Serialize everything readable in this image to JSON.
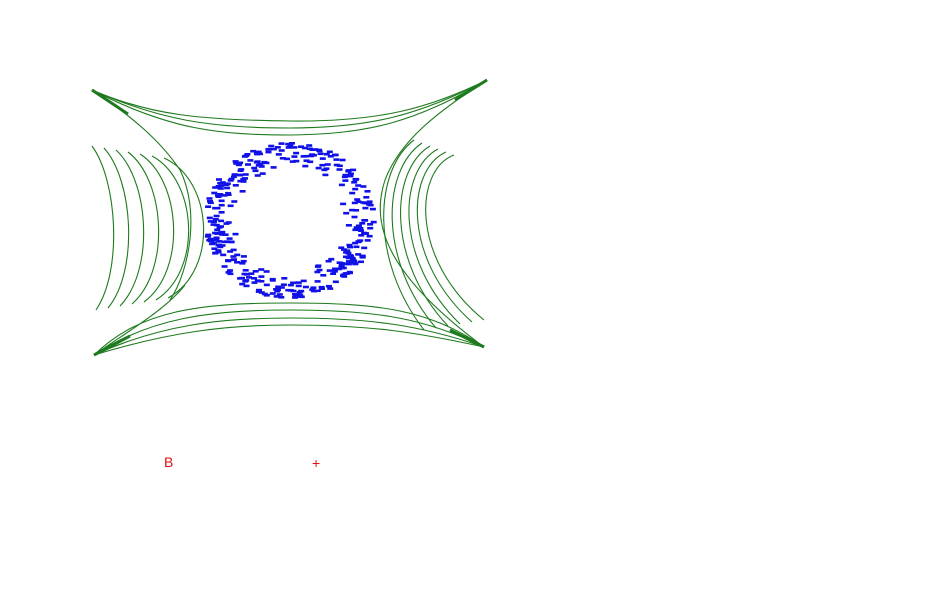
{
  "diagram": {
    "line_color": "#1e7a1e",
    "particle_color": "#1010e8",
    "marker_color": "#e01010",
    "labels": {
      "marker_b": "B",
      "marker_plus": "+"
    }
  }
}
